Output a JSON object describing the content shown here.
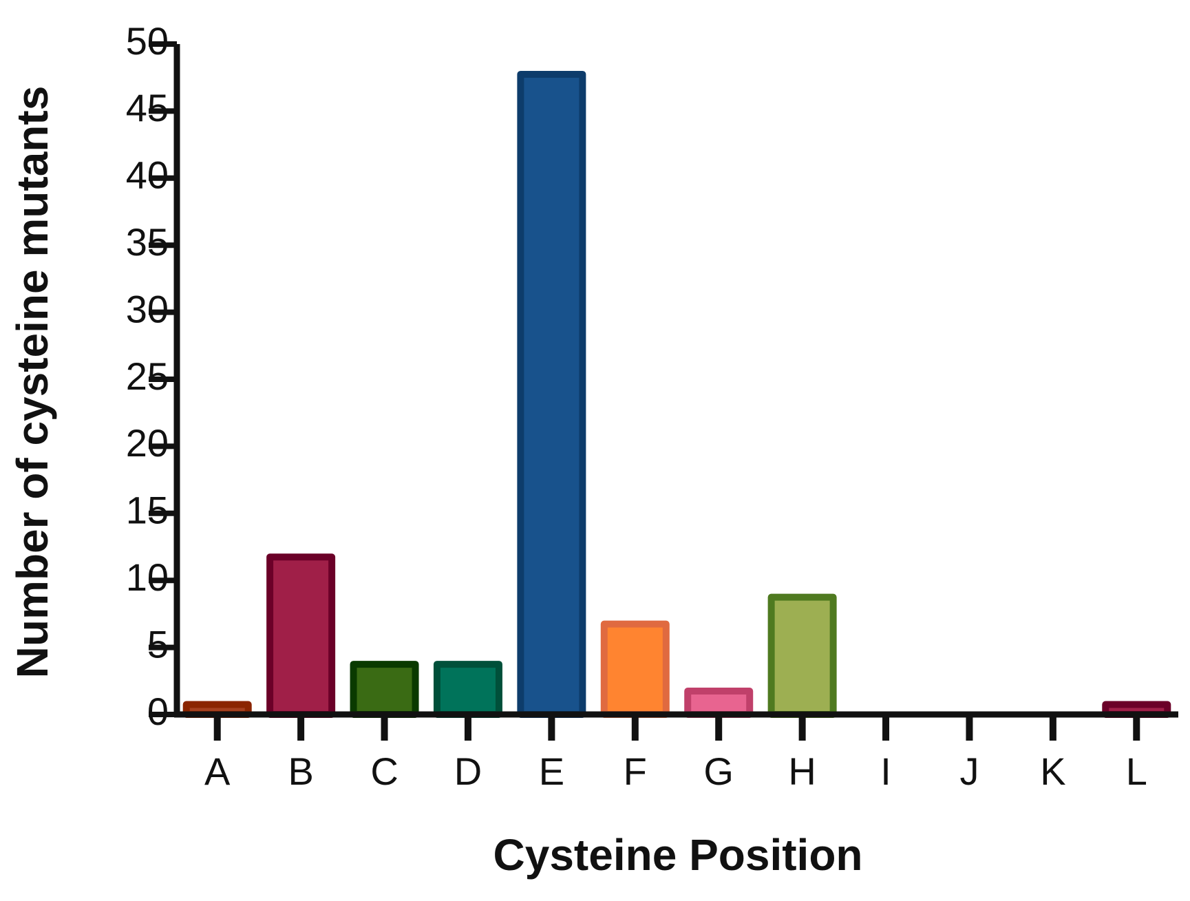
{
  "chart_data": {
    "type": "bar",
    "x_label": "Cysteine Position",
    "y_label": "Number of cysteine mutants",
    "categories": [
      "A",
      "B",
      "C",
      "D",
      "E",
      "F",
      "G",
      "H",
      "I",
      "J",
      "K",
      "L"
    ],
    "values": [
      1,
      12,
      4,
      4,
      48,
      7,
      2,
      9,
      0,
      0,
      0,
      1
    ],
    "colors": [
      "#a5401e",
      "#a01f48",
      "#3a6b14",
      "#00735a",
      "#18528c",
      "#ff8430",
      "#e86490",
      "#9daf52",
      "#a01f48",
      "#a01f48",
      "#a01f48",
      "#a01f48"
    ],
    "edge_colors": [
      "#8b2500",
      "#6b0028",
      "#0a3a00",
      "#00503a",
      "#0d3c6b",
      "#e06a40",
      "#c0406a",
      "#4f7a20",
      "#6b0028",
      "#6b0028",
      "#6b0028",
      "#6b0028"
    ],
    "ylim": [
      0,
      50
    ],
    "yticks": [
      0,
      5,
      10,
      15,
      20,
      25,
      30,
      35,
      40,
      45,
      50
    ],
    "grid": false
  }
}
